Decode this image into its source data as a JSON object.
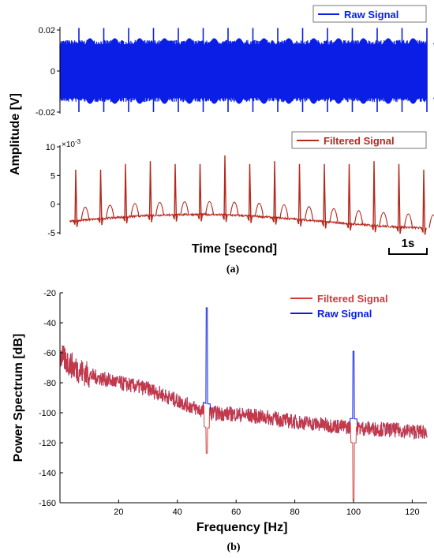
{
  "colors": {
    "raw": "#0a1ee6",
    "filtered": "#b5281c",
    "filtered_b": "#d23a3a",
    "axis": "#000000"
  },
  "panel_a": {
    "caption": "(a)",
    "ylabel": "Amplitude [V]",
    "xlabel": "Time [second]",
    "scalebar_label": "1s"
  },
  "panel_b": {
    "caption": "(b)"
  },
  "chart_data": [
    {
      "type": "line",
      "panel": "a-top",
      "series": [
        {
          "name": "Raw Signal",
          "color": "#0a1ee6"
        }
      ],
      "ylim": [
        -0.02,
        0.02
      ],
      "yticks": [
        "0.02",
        "0",
        "-0.02"
      ],
      "band_envelope": [
        -0.014,
        0.014
      ],
      "spikes": {
        "count": 15,
        "top": 0.021,
        "bottom": -0.02
      },
      "legend": "top-right"
    },
    {
      "type": "line",
      "panel": "a-bottom",
      "series": [
        {
          "name": "Filtered Signal",
          "color": "#b5281c"
        }
      ],
      "ylim": [
        -5,
        10
      ],
      "yticks": [
        "10",
        "5",
        "0",
        "-5"
      ],
      "exponent_label": "×10",
      "exponent_power": "-3",
      "baseline": -2,
      "beat_peaks": [
        6,
        6,
        7,
        7.5,
        7,
        7,
        8.5,
        7,
        7.5,
        7,
        7,
        7,
        7.5,
        7,
        6
      ],
      "t_wave_peak": 2,
      "legend": "top-right"
    },
    {
      "type": "line",
      "panel": "b",
      "xlabel": "Frequency [Hz]",
      "ylabel": "Power Spectrum  [dB]",
      "xlim": [
        0,
        125
      ],
      "ylim": [
        -160,
        -20
      ],
      "xticks": [
        20,
        40,
        60,
        80,
        100,
        120
      ],
      "yticks": [
        -20,
        -40,
        -60,
        -80,
        -100,
        -120,
        -140,
        -160
      ],
      "series": [
        {
          "name": "Filtered Signal",
          "color": "#d23a3a",
          "trend": [
            [
              0,
              -62
            ],
            [
              5,
              -70
            ],
            [
              10,
              -75
            ],
            [
              20,
              -80
            ],
            [
              30,
              -84
            ],
            [
              40,
              -92
            ],
            [
              45,
              -96
            ],
            [
              50,
              -100
            ],
            [
              60,
              -101
            ],
            [
              70,
              -103
            ],
            [
              80,
              -106
            ],
            [
              90,
              -108
            ],
            [
              100,
              -110
            ],
            [
              110,
              -111
            ],
            [
              125,
              -113
            ]
          ],
          "notches": [
            [
              50,
              -127
            ],
            [
              100,
              -158
            ]
          ]
        },
        {
          "name": "Raw Signal",
          "color": "#0a1ee6",
          "peaks": [
            [
              50,
              -30
            ],
            [
              100,
              -59
            ]
          ]
        }
      ],
      "legend": "top-right"
    }
  ]
}
